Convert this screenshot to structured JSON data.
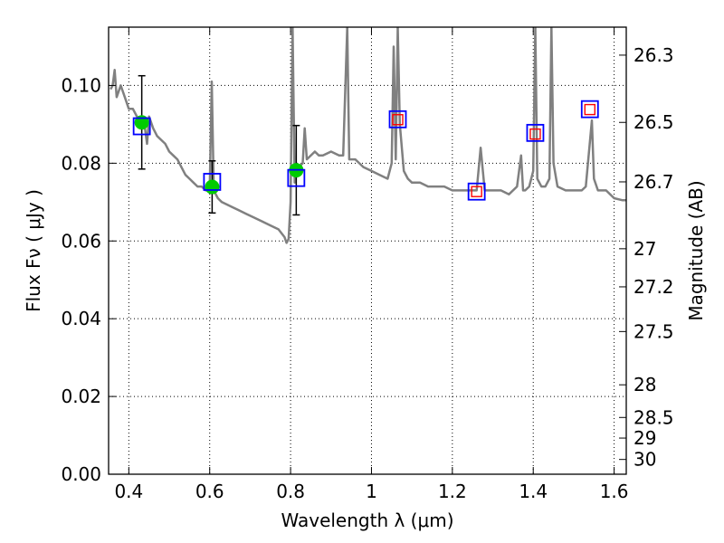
{
  "chart_data": {
    "type": "scatter",
    "xlabel": "Wavelength  λ (μm)",
    "ylabel": "Flux  Fν  ( μJy )",
    "y2label": "Magnitude (AB)",
    "xlim": [
      0.35,
      1.63
    ],
    "ylim": [
      0.0,
      0.115
    ],
    "x_ticks": [
      0.4,
      0.6,
      0.8,
      1.0,
      1.2,
      1.4,
      1.6
    ],
    "x_tick_labels": [
      "0.4",
      "0.6",
      "0.8",
      "1",
      "1.2",
      "1.4",
      "1.6"
    ],
    "y_ticks": [
      0.0,
      0.02,
      0.04,
      0.06,
      0.08,
      0.1
    ],
    "y_tick_labels": [
      "0.00",
      "0.02",
      "0.04",
      "0.06",
      "0.08",
      "0.10"
    ],
    "y2_ticks": [
      {
        "label": "26.3",
        "flux": 0.1078
      },
      {
        "label": "26.5",
        "flux": 0.0905
      },
      {
        "label": "26.7",
        "flux": 0.0752
      },
      {
        "label": "27",
        "flux": 0.058
      },
      {
        "label": "27.2",
        "flux": 0.0482
      },
      {
        "label": "27.5",
        "flux": 0.0367
      },
      {
        "label": "28",
        "flux": 0.023
      },
      {
        "label": "28.5",
        "flux": 0.0146
      },
      {
        "label": "29",
        "flux": 0.0093
      },
      {
        "label": "30",
        "flux": 0.0038
      }
    ],
    "grid": true,
    "colors": {
      "sed": "#808080",
      "observed": "#00cc00",
      "model_box": "#0000ff",
      "predicted_box": "#ff0000",
      "errorbar": "#000000",
      "grid": "#000000"
    },
    "series": [
      {
        "kind": "line",
        "points": [
          [
            0.355,
            0.099
          ],
          [
            0.36,
            0.1
          ],
          [
            0.365,
            0.104
          ],
          [
            0.37,
            0.097
          ],
          [
            0.38,
            0.1
          ],
          [
            0.39,
            0.097
          ],
          [
            0.4,
            0.094
          ],
          [
            0.41,
            0.094
          ],
          [
            0.42,
            0.092
          ],
          [
            0.43,
            0.091
          ],
          [
            0.44,
            0.089
          ],
          [
            0.445,
            0.085
          ],
          [
            0.45,
            0.092
          ],
          [
            0.46,
            0.089
          ],
          [
            0.47,
            0.087
          ],
          [
            0.48,
            0.086
          ],
          [
            0.49,
            0.085
          ],
          [
            0.5,
            0.083
          ],
          [
            0.51,
            0.082
          ],
          [
            0.52,
            0.081
          ],
          [
            0.53,
            0.079
          ],
          [
            0.54,
            0.077
          ],
          [
            0.55,
            0.076
          ],
          [
            0.56,
            0.075
          ],
          [
            0.57,
            0.074
          ],
          [
            0.58,
            0.074
          ],
          [
            0.59,
            0.073
          ],
          [
            0.6,
            0.073
          ],
          [
            0.605,
            0.101
          ],
          [
            0.61,
            0.073
          ],
          [
            0.62,
            0.071
          ],
          [
            0.63,
            0.07
          ],
          [
            0.65,
            0.069
          ],
          [
            0.67,
            0.068
          ],
          [
            0.69,
            0.067
          ],
          [
            0.71,
            0.066
          ],
          [
            0.73,
            0.065
          ],
          [
            0.75,
            0.064
          ],
          [
            0.77,
            0.063
          ],
          [
            0.785,
            0.061
          ],
          [
            0.79,
            0.0595
          ],
          [
            0.795,
            0.0605
          ],
          [
            0.8,
            0.07
          ],
          [
            0.805,
            0.115
          ],
          [
            0.81,
            0.075
          ],
          [
            0.82,
            0.079
          ],
          [
            0.83,
            0.08
          ],
          [
            0.835,
            0.089
          ],
          [
            0.84,
            0.081
          ],
          [
            0.86,
            0.083
          ],
          [
            0.87,
            0.082
          ],
          [
            0.88,
            0.082
          ],
          [
            0.9,
            0.083
          ],
          [
            0.92,
            0.082
          ],
          [
            0.93,
            0.082
          ],
          [
            0.94,
            0.115
          ],
          [
            0.945,
            0.081
          ],
          [
            0.96,
            0.081
          ],
          [
            0.98,
            0.079
          ],
          [
            1.0,
            0.078
          ],
          [
            1.02,
            0.077
          ],
          [
            1.04,
            0.076
          ],
          [
            1.05,
            0.08
          ],
          [
            1.055,
            0.11
          ],
          [
            1.06,
            0.081
          ],
          [
            1.065,
            0.115
          ],
          [
            1.07,
            0.09
          ],
          [
            1.08,
            0.078
          ],
          [
            1.09,
            0.076
          ],
          [
            1.1,
            0.075
          ],
          [
            1.12,
            0.075
          ],
          [
            1.14,
            0.074
          ],
          [
            1.16,
            0.074
          ],
          [
            1.18,
            0.074
          ],
          [
            1.2,
            0.073
          ],
          [
            1.22,
            0.073
          ],
          [
            1.24,
            0.073
          ],
          [
            1.26,
            0.073
          ],
          [
            1.27,
            0.084
          ],
          [
            1.28,
            0.073
          ],
          [
            1.3,
            0.073
          ],
          [
            1.32,
            0.073
          ],
          [
            1.34,
            0.072
          ],
          [
            1.36,
            0.074
          ],
          [
            1.37,
            0.082
          ],
          [
            1.375,
            0.073
          ],
          [
            1.38,
            0.073
          ],
          [
            1.39,
            0.074
          ],
          [
            1.4,
            0.078
          ],
          [
            1.405,
            0.115
          ],
          [
            1.41,
            0.076
          ],
          [
            1.42,
            0.074
          ],
          [
            1.43,
            0.074
          ],
          [
            1.44,
            0.076
          ],
          [
            1.445,
            0.115
          ],
          [
            1.45,
            0.08
          ],
          [
            1.46,
            0.074
          ],
          [
            1.48,
            0.073
          ],
          [
            1.5,
            0.073
          ],
          [
            1.52,
            0.073
          ],
          [
            1.53,
            0.074
          ],
          [
            1.545,
            0.091
          ],
          [
            1.55,
            0.076
          ],
          [
            1.56,
            0.073
          ],
          [
            1.58,
            0.073
          ],
          [
            1.6,
            0.071
          ],
          [
            1.62,
            0.0705
          ],
          [
            1.63,
            0.0705
          ]
        ]
      },
      {
        "kind": "observed",
        "points": [
          {
            "x": 0.432,
            "y": 0.0905,
            "err": 0.012
          },
          {
            "x": 0.606,
            "y": 0.0739,
            "err": 0.0067
          },
          {
            "x": 0.814,
            "y": 0.0782,
            "err": 0.0115
          }
        ]
      },
      {
        "kind": "model",
        "points": [
          {
            "x": 0.432,
            "y": 0.0895
          },
          {
            "x": 0.606,
            "y": 0.0752
          },
          {
            "x": 0.814,
            "y": 0.0762
          },
          {
            "x": 1.065,
            "y": 0.0913
          },
          {
            "x": 1.26,
            "y": 0.0727
          },
          {
            "x": 1.405,
            "y": 0.0878
          },
          {
            "x": 1.54,
            "y": 0.0939
          }
        ]
      },
      {
        "kind": "predicted",
        "points": [
          {
            "x": 1.065,
            "y": 0.0912
          },
          {
            "x": 1.26,
            "y": 0.0727
          },
          {
            "x": 1.405,
            "y": 0.0875
          },
          {
            "x": 1.54,
            "y": 0.0938
          }
        ]
      }
    ]
  }
}
